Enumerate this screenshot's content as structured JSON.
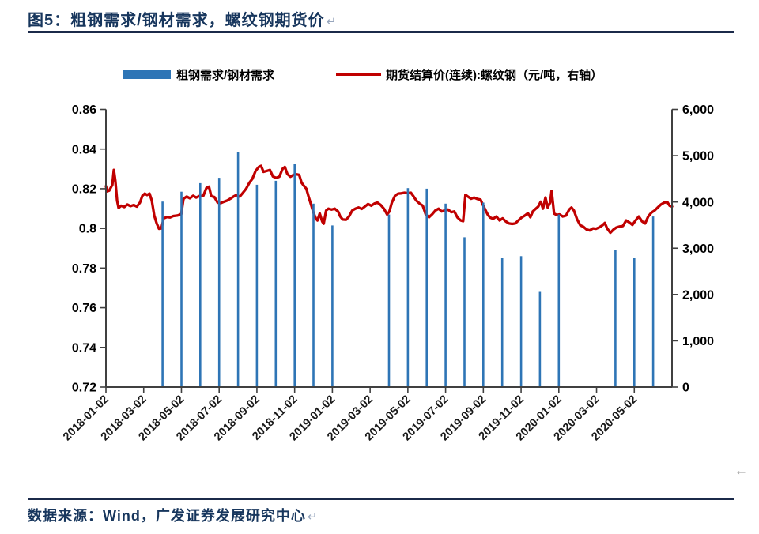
{
  "page": {
    "title": "图5：粗钢需求/钢材需求，螺纹钢期货价",
    "title_mark": "↵",
    "footer": "数据来源：Wind，广发证券发展研究中心",
    "footer_mark": "↵",
    "corner_mark": "←"
  },
  "legend": {
    "bar_label": "粗钢需求/钢材需求",
    "line_label": "期货结算价(连续):螺纹钢（元/吨，右轴）"
  },
  "colors": {
    "bar": "#2E75B6",
    "line": "#C00000",
    "axis": "#404040",
    "title_text": "#17365D",
    "rule": "#1b2a4a",
    "mark_gray": "#9a9a9a"
  },
  "chart_data": {
    "type": "bar+line (dual axis)",
    "title": "图5：粗钢需求/钢材需求，螺纹钢期货价",
    "x_axis": {
      "note": "months measured from 2018-01-02 (m=0), one unit = one month",
      "tick_months": [
        0,
        2,
        4,
        6,
        8,
        10,
        12,
        14,
        16,
        18,
        20,
        22,
        24,
        26,
        28
      ],
      "tick_labels": [
        "2018-01-02",
        "2018-03-02",
        "2018-05-02",
        "2018-07-02",
        "2018-09-02",
        "2018-11-02",
        "2019-01-02",
        "2019-03-02",
        "2019-05-02",
        "2019-07-02",
        "2019-09-02",
        "2019-11-02",
        "2020-01-02",
        "2020-03-02",
        "2020-05-02"
      ],
      "range_months": [
        0,
        30
      ]
    },
    "left_axis": {
      "min": 0.72,
      "max": 0.86,
      "tick_values": [
        0.72,
        0.74,
        0.76,
        0.78,
        0.8,
        0.82,
        0.84,
        0.86
      ],
      "tick_labels": [
        "0.72",
        "0.74",
        "0.76",
        "0.78",
        "0.8",
        "0.82",
        "0.84",
        "0.86"
      ],
      "series": "粗钢需求/钢材需求"
    },
    "right_axis": {
      "min": 0,
      "max": 6000,
      "tick_values": [
        0,
        1000,
        2000,
        3000,
        4000,
        5000,
        6000
      ],
      "tick_labels": [
        "0",
        "1,000",
        "2,000",
        "3,000",
        "4,000",
        "5,000",
        "6,000"
      ],
      "series": "期货结算价(连续):螺纹钢（元/吨）"
    },
    "bars": {
      "name": "粗钢需求/钢材需求",
      "axis": "left",
      "points": [
        [
          3,
          0.8135
        ],
        [
          4,
          0.8185
        ],
        [
          5,
          0.8228
        ],
        [
          6,
          0.8255
        ],
        [
          7,
          0.8385
        ],
        [
          8,
          0.822
        ],
        [
          9,
          0.824
        ],
        [
          10,
          0.8325
        ],
        [
          11,
          0.8125
        ],
        [
          12,
          0.8015
        ],
        [
          15,
          0.807
        ],
        [
          16,
          0.8203
        ],
        [
          17,
          0.82
        ],
        [
          18,
          0.8125
        ],
        [
          19,
          0.7955
        ],
        [
          20,
          0.813
        ],
        [
          21,
          0.785
        ],
        [
          22,
          0.786
        ],
        [
          23,
          0.768
        ],
        [
          24,
          0.807
        ],
        [
          27,
          0.789
        ],
        [
          28,
          0.7853
        ],
        [
          29,
          0.806
        ]
      ]
    },
    "line": {
      "name": "期货结算价(连续):螺纹钢（元/吨，右轴）",
      "axis": "right",
      "points": [
        [
          0,
          4340
        ],
        [
          0.06,
          4230
        ],
        [
          0.17,
          4245
        ],
        [
          0.34,
          4370
        ],
        [
          0.42,
          4690
        ],
        [
          0.5,
          4455
        ],
        [
          0.59,
          4030
        ],
        [
          0.67,
          3870
        ],
        [
          0.8,
          3920
        ],
        [
          0.97,
          3890
        ],
        [
          1.13,
          3945
        ],
        [
          1.3,
          3910
        ],
        [
          1.47,
          3935
        ],
        [
          1.64,
          3900
        ],
        [
          1.8,
          3985
        ],
        [
          1.93,
          4135
        ],
        [
          2.06,
          4180
        ],
        [
          2.18,
          4150
        ],
        [
          2.31,
          4180
        ],
        [
          2.43,
          4030
        ],
        [
          2.56,
          3705
        ],
        [
          2.69,
          3535
        ],
        [
          2.81,
          3420
        ],
        [
          2.94,
          3430
        ],
        [
          3.06,
          3645
        ],
        [
          3.23,
          3675
        ],
        [
          3.4,
          3665
        ],
        [
          3.57,
          3695
        ],
        [
          3.78,
          3705
        ],
        [
          3.99,
          3735
        ],
        [
          4.11,
          4070
        ],
        [
          4.28,
          4115
        ],
        [
          4.45,
          4080
        ],
        [
          4.62,
          4135
        ],
        [
          4.78,
          4095
        ],
        [
          4.95,
          4125
        ],
        [
          5.16,
          4135
        ],
        [
          5.33,
          4305
        ],
        [
          5.46,
          4330
        ],
        [
          5.58,
          4125
        ],
        [
          5.75,
          4105
        ],
        [
          5.92,
          3985
        ],
        [
          6.08,
          3975
        ],
        [
          6.25,
          4005
        ],
        [
          6.42,
          4030
        ],
        [
          6.59,
          4070
        ],
        [
          6.76,
          4115
        ],
        [
          6.92,
          4150
        ],
        [
          7.09,
          4115
        ],
        [
          7.26,
          4200
        ],
        [
          7.43,
          4285
        ],
        [
          7.6,
          4415
        ],
        [
          7.76,
          4500
        ],
        [
          7.93,
          4670
        ],
        [
          8.1,
          4755
        ],
        [
          8.22,
          4780
        ],
        [
          8.35,
          4650
        ],
        [
          8.52,
          4670
        ],
        [
          8.69,
          4690
        ],
        [
          8.85,
          4550
        ],
        [
          9.02,
          4520
        ],
        [
          9.19,
          4545
        ],
        [
          9.36,
          4715
        ],
        [
          9.48,
          4755
        ],
        [
          9.61,
          4605
        ],
        [
          9.78,
          4545
        ],
        [
          9.94,
          4585
        ],
        [
          10.11,
          4595
        ],
        [
          10.24,
          4585
        ],
        [
          10.37,
          4415
        ],
        [
          10.49,
          4350
        ],
        [
          10.62,
          4285
        ],
        [
          10.74,
          4115
        ],
        [
          10.87,
          3945
        ],
        [
          11,
          3770
        ],
        [
          11.12,
          3645
        ],
        [
          11.21,
          3600
        ],
        [
          11.33,
          3750
        ],
        [
          11.46,
          3580
        ],
        [
          11.54,
          3530
        ],
        [
          11.67,
          3815
        ],
        [
          11.79,
          3855
        ],
        [
          11.96,
          3835
        ],
        [
          12.13,
          3855
        ],
        [
          12.3,
          3795
        ],
        [
          12.42,
          3685
        ],
        [
          12.55,
          3620
        ],
        [
          12.72,
          3615
        ],
        [
          12.88,
          3685
        ],
        [
          13.05,
          3815
        ],
        [
          13.22,
          3855
        ],
        [
          13.39,
          3880
        ],
        [
          13.56,
          3850
        ],
        [
          13.72,
          3900
        ],
        [
          13.89,
          3955
        ],
        [
          14.06,
          3920
        ],
        [
          14.23,
          3965
        ],
        [
          14.39,
          3985
        ],
        [
          14.56,
          3935
        ],
        [
          14.73,
          3855
        ],
        [
          14.9,
          3730
        ],
        [
          15.02,
          3795
        ],
        [
          15.15,
          3985
        ],
        [
          15.32,
          4135
        ],
        [
          15.49,
          4180
        ],
        [
          15.65,
          4185
        ],
        [
          15.82,
          4200
        ],
        [
          15.99,
          4190
        ],
        [
          16.16,
          4200
        ],
        [
          16.28,
          4135
        ],
        [
          16.45,
          4030
        ],
        [
          16.62,
          3965
        ],
        [
          16.79,
          3920
        ],
        [
          16.95,
          3730
        ],
        [
          17.12,
          3670
        ],
        [
          17.29,
          3735
        ],
        [
          17.46,
          3815
        ],
        [
          17.63,
          3855
        ],
        [
          17.79,
          3795
        ],
        [
          17.96,
          3815
        ],
        [
          18.13,
          3835
        ],
        [
          18.3,
          3780
        ],
        [
          18.46,
          3795
        ],
        [
          18.63,
          3665
        ],
        [
          18.8,
          3600
        ],
        [
          18.93,
          3585
        ],
        [
          19.05,
          4155
        ],
        [
          19.18,
          4115
        ],
        [
          19.35,
          4070
        ],
        [
          19.51,
          4095
        ],
        [
          19.68,
          4065
        ],
        [
          19.85,
          4050
        ],
        [
          19.97,
          3945
        ],
        [
          20.1,
          3835
        ],
        [
          20.23,
          3730
        ],
        [
          20.35,
          3665
        ],
        [
          20.52,
          3635
        ],
        [
          20.69,
          3685
        ],
        [
          20.86,
          3600
        ],
        [
          21.02,
          3645
        ],
        [
          21.19,
          3580
        ],
        [
          21.36,
          3535
        ],
        [
          21.53,
          3525
        ],
        [
          21.69,
          3535
        ],
        [
          21.86,
          3600
        ],
        [
          22.03,
          3665
        ],
        [
          22.2,
          3705
        ],
        [
          22.36,
          3755
        ],
        [
          22.49,
          3670
        ],
        [
          22.62,
          3795
        ],
        [
          22.78,
          3855
        ],
        [
          22.91,
          3900
        ],
        [
          23.04,
          4005
        ],
        [
          23.16,
          3855
        ],
        [
          23.29,
          4095
        ],
        [
          23.41,
          3880
        ],
        [
          23.54,
          3985
        ],
        [
          23.62,
          4240
        ],
        [
          23.75,
          3750
        ],
        [
          23.88,
          3720
        ],
        [
          24.04,
          3730
        ],
        [
          24.21,
          3685
        ],
        [
          24.38,
          3705
        ],
        [
          24.55,
          3835
        ],
        [
          24.67,
          3880
        ],
        [
          24.8,
          3815
        ],
        [
          24.97,
          3620
        ],
        [
          25.14,
          3495
        ],
        [
          25.3,
          3465
        ],
        [
          25.47,
          3405
        ],
        [
          25.64,
          3385
        ],
        [
          25.81,
          3430
        ],
        [
          25.97,
          3420
        ],
        [
          26.14,
          3450
        ],
        [
          26.31,
          3495
        ],
        [
          26.44,
          3545
        ],
        [
          26.56,
          3430
        ],
        [
          26.73,
          3335
        ],
        [
          26.9,
          3405
        ],
        [
          27.06,
          3450
        ],
        [
          27.23,
          3470
        ],
        [
          27.4,
          3480
        ],
        [
          27.57,
          3600
        ],
        [
          27.74,
          3555
        ],
        [
          27.9,
          3505
        ],
        [
          28.07,
          3600
        ],
        [
          28.24,
          3685
        ],
        [
          28.41,
          3580
        ],
        [
          28.57,
          3535
        ],
        [
          28.74,
          3685
        ],
        [
          28.91,
          3770
        ],
        [
          29.08,
          3815
        ],
        [
          29.24,
          3880
        ],
        [
          29.41,
          3945
        ],
        [
          29.58,
          3985
        ],
        [
          29.75,
          4000
        ],
        [
          29.87,
          3920
        ],
        [
          30,
          3900
        ]
      ]
    },
    "legend_position": "top",
    "grid": false
  }
}
